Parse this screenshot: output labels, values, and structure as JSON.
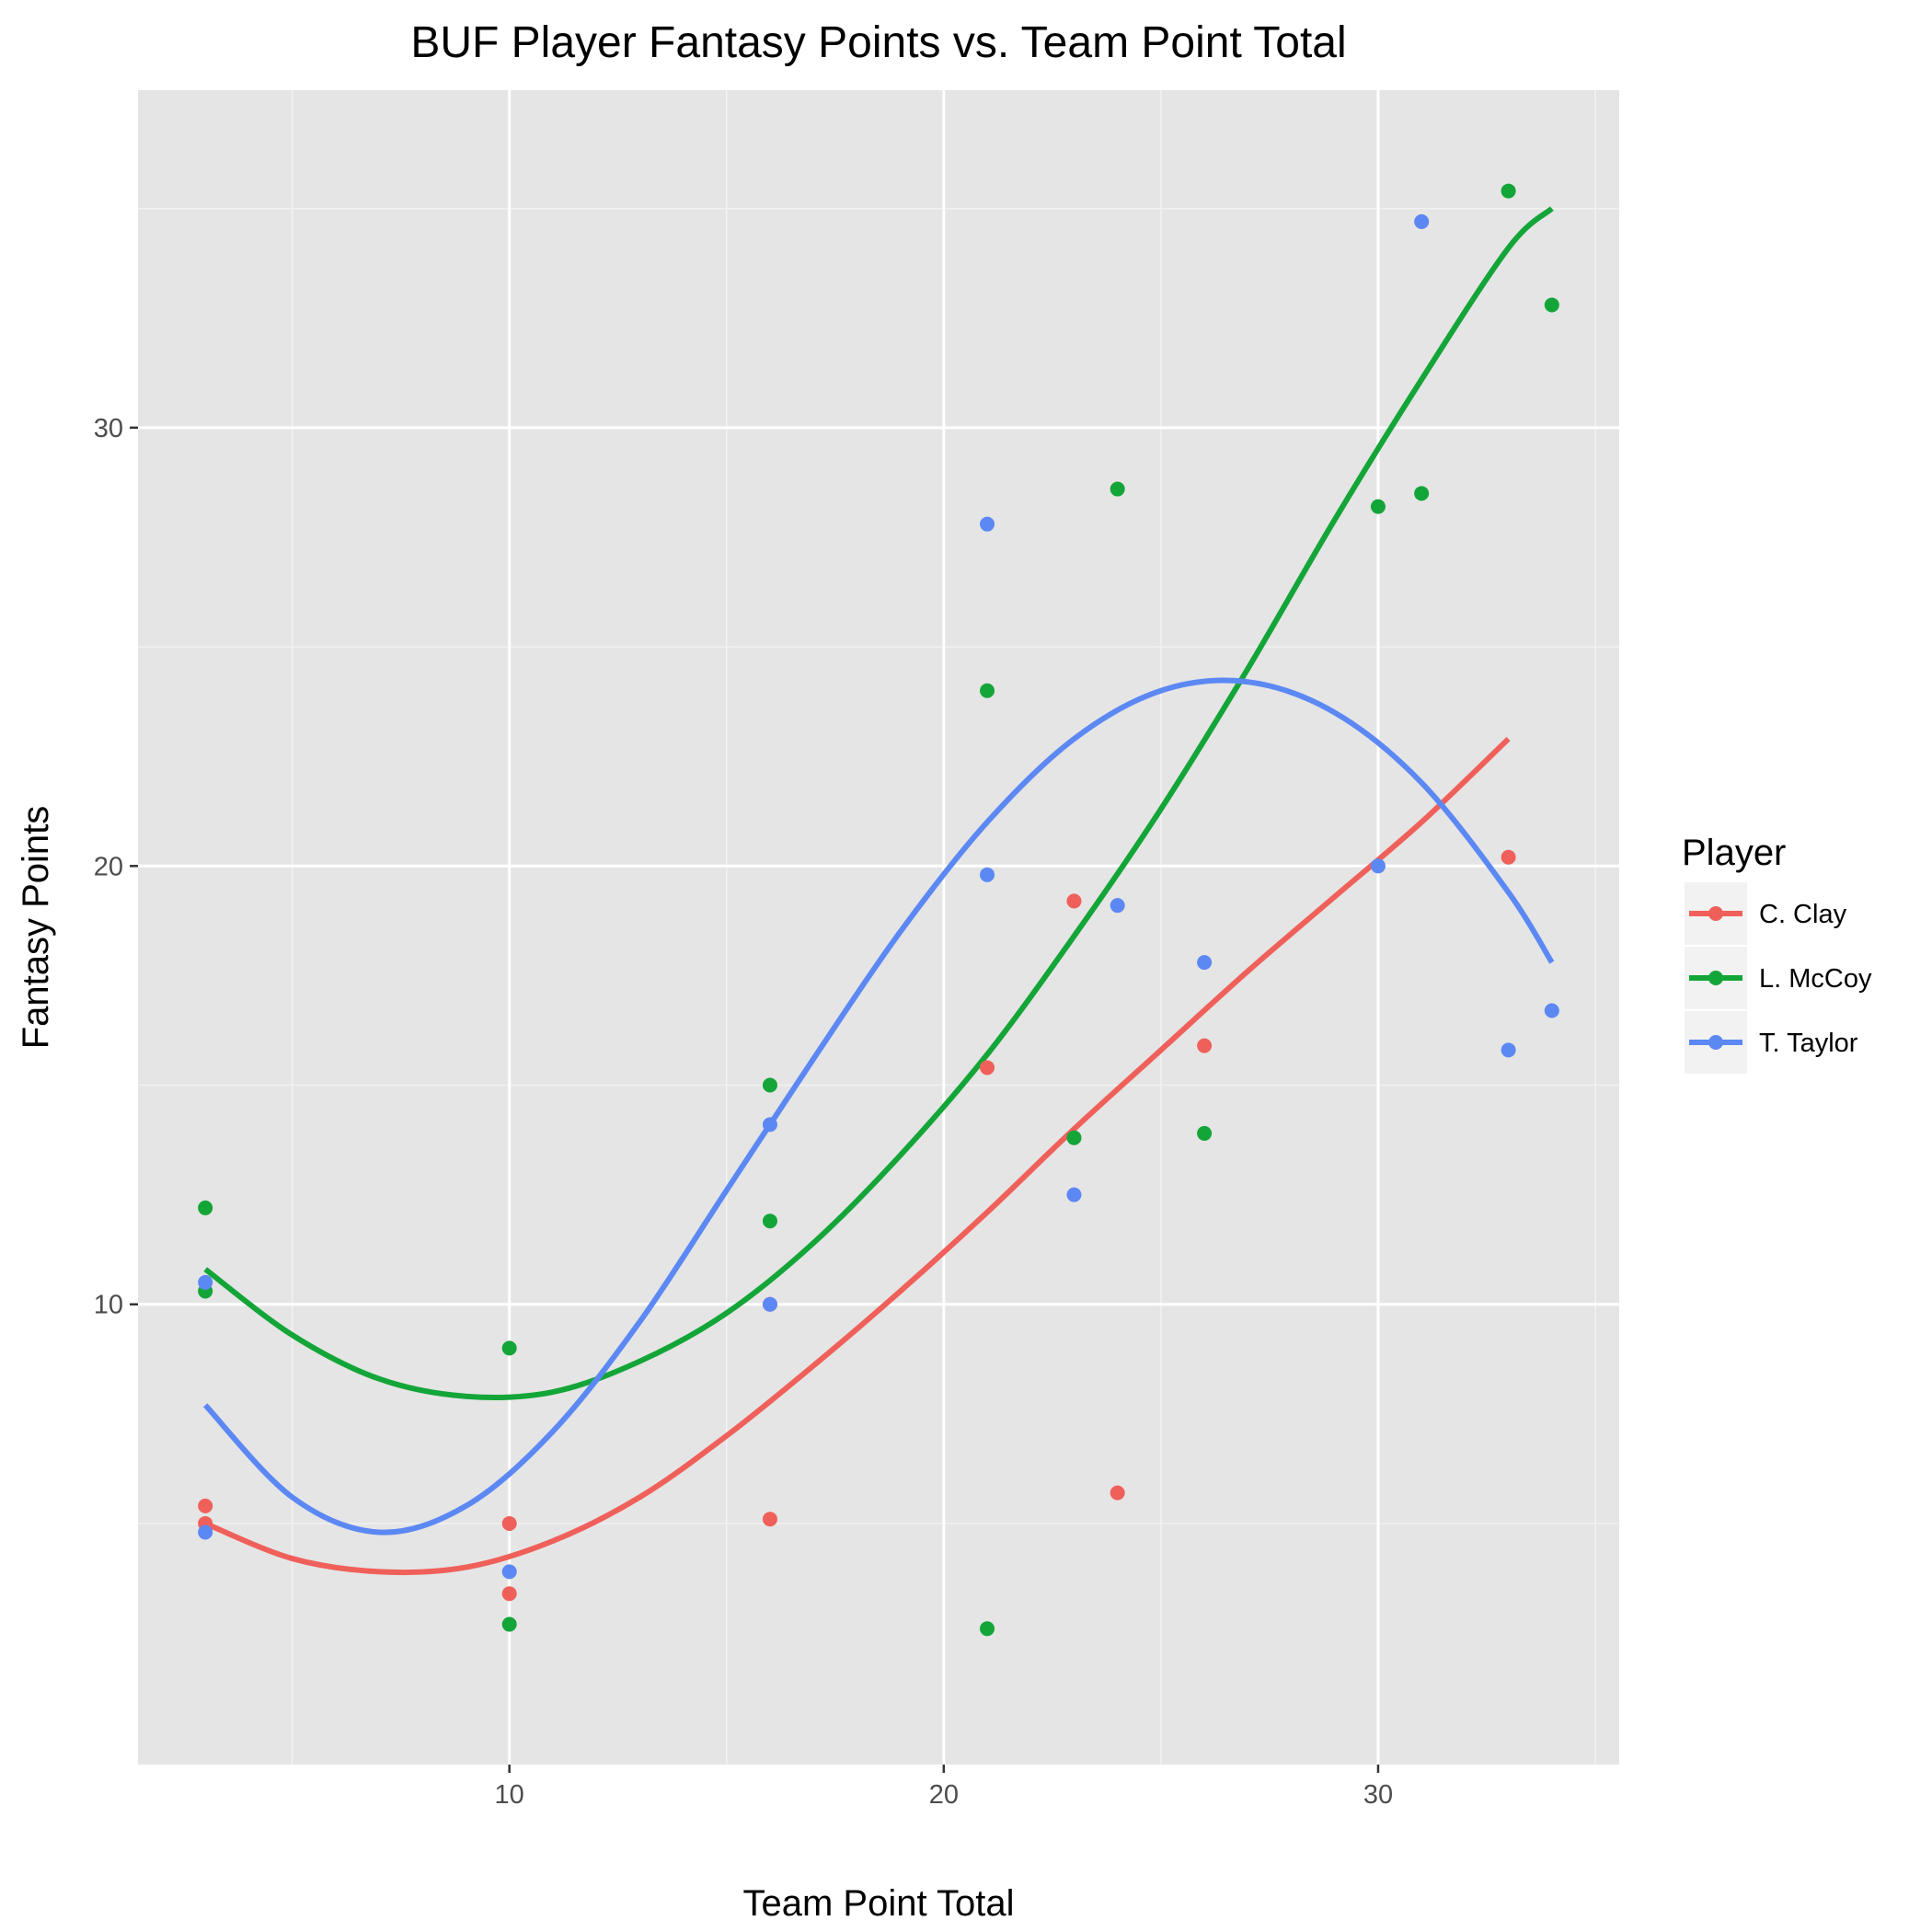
{
  "chart_data": {
    "type": "scatter",
    "title": "BUF Player Fantasy Points vs. Team Point Total",
    "xlabel": "Team Point Total",
    "ylabel": "Fantasy Points",
    "xlim": [
      1.45,
      35.55
    ],
    "ylim": [
      -0.5,
      37.7
    ],
    "x_ticks": [
      10,
      20,
      30
    ],
    "y_ticks": [
      10,
      20,
      30
    ],
    "x_minor": [
      5,
      15,
      25,
      35
    ],
    "y_minor": [
      5,
      15,
      25,
      35
    ],
    "grid": true,
    "background": "#e5e5e5",
    "legend": {
      "title": "Player",
      "position": "right"
    },
    "series": [
      {
        "name": "C. Clay",
        "color": "#f0605a",
        "points": [
          [
            3,
            5.4
          ],
          [
            3,
            5.0
          ],
          [
            10,
            5.0
          ],
          [
            10,
            3.4
          ],
          [
            16,
            5.1
          ],
          [
            16,
            10.0
          ],
          [
            21,
            15.4
          ],
          [
            23,
            19.2
          ],
          [
            24,
            5.7
          ],
          [
            26,
            15.9
          ],
          [
            33,
            20.2
          ]
        ],
        "smooth": [
          [
            3,
            5.0
          ],
          [
            5,
            4.2
          ],
          [
            7,
            3.9
          ],
          [
            9,
            4.0
          ],
          [
            11,
            4.6
          ],
          [
            13,
            5.6
          ],
          [
            15,
            7.0
          ],
          [
            17,
            8.6
          ],
          [
            19,
            10.3
          ],
          [
            21,
            12.1
          ],
          [
            23,
            14.0
          ],
          [
            25,
            15.8
          ],
          [
            27,
            17.6
          ],
          [
            29,
            19.3
          ],
          [
            31,
            21.0
          ],
          [
            33,
            22.9
          ]
        ]
      },
      {
        "name": "L. McCoy",
        "color": "#13a538",
        "points": [
          [
            3,
            12.2
          ],
          [
            3,
            10.3
          ],
          [
            10,
            9.0
          ],
          [
            10,
            2.7
          ],
          [
            16,
            15.0
          ],
          [
            16,
            11.9
          ],
          [
            21,
            24.0
          ],
          [
            21,
            2.6
          ],
          [
            23,
            13.8
          ],
          [
            24,
            28.6
          ],
          [
            26,
            13.9
          ],
          [
            30,
            28.2
          ],
          [
            31,
            28.5
          ],
          [
            33,
            35.4
          ],
          [
            34,
            32.8
          ]
        ],
        "smooth": [
          [
            3,
            10.8
          ],
          [
            5,
            9.3
          ],
          [
            7,
            8.3
          ],
          [
            9,
            7.9
          ],
          [
            11,
            8.0
          ],
          [
            13,
            8.7
          ],
          [
            15,
            9.8
          ],
          [
            17,
            11.4
          ],
          [
            19,
            13.4
          ],
          [
            21,
            15.7
          ],
          [
            23,
            18.4
          ],
          [
            25,
            21.3
          ],
          [
            27,
            24.5
          ],
          [
            29,
            27.9
          ],
          [
            31,
            31.1
          ],
          [
            33,
            34.1
          ],
          [
            34,
            35.0
          ]
        ]
      },
      {
        "name": "T. Taylor",
        "color": "#5c88f4",
        "points": [
          [
            3,
            10.5
          ],
          [
            3,
            4.8
          ],
          [
            10,
            3.9
          ],
          [
            16,
            14.1
          ],
          [
            16,
            10.0
          ],
          [
            21,
            27.8
          ],
          [
            21,
            19.8
          ],
          [
            23,
            12.5
          ],
          [
            24,
            19.1
          ],
          [
            26,
            17.8
          ],
          [
            30,
            20.0
          ],
          [
            31,
            34.7
          ],
          [
            33,
            15.8
          ],
          [
            34,
            16.7
          ]
        ],
        "smooth": [
          [
            3,
            7.7
          ],
          [
            5,
            5.6
          ],
          [
            7,
            4.8
          ],
          [
            9,
            5.4
          ],
          [
            11,
            7.1
          ],
          [
            13,
            9.6
          ],
          [
            15,
            12.6
          ],
          [
            17,
            15.6
          ],
          [
            19,
            18.5
          ],
          [
            21,
            21.0
          ],
          [
            23,
            22.9
          ],
          [
            25,
            24.0
          ],
          [
            27,
            24.2
          ],
          [
            29,
            23.5
          ],
          [
            31,
            21.9
          ],
          [
            33,
            19.4
          ],
          [
            34,
            17.8
          ]
        ]
      }
    ]
  }
}
